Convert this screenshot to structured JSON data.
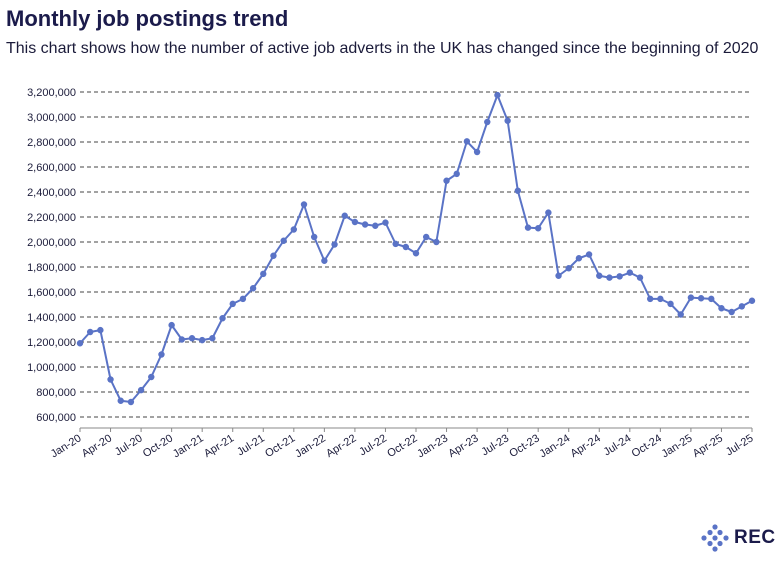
{
  "header": {
    "title": "Monthly job postings trend",
    "subtitle": "This chart shows how the number of active job adverts in the UK has changed since the beginning of 2020"
  },
  "logo": {
    "text": "REC",
    "icon": "diamond-dots-icon"
  },
  "colors": {
    "series": "#5a73c6",
    "grid": "#444444",
    "text": "#1b1b3a"
  },
  "chart_data": {
    "type": "line",
    "title": "Monthly job postings trend",
    "subtitle": "This chart shows how the number of active job adverts in the UK has changed since the beginning of 2020",
    "xlabel": "",
    "ylabel": "",
    "ylim": [
      600000,
      3200000
    ],
    "yticks": [
      600000,
      800000,
      1000000,
      1200000,
      1400000,
      1600000,
      1800000,
      2000000,
      2200000,
      2400000,
      2600000,
      2800000,
      3000000,
      3200000
    ],
    "ytick_labels": [
      "600,000",
      "800,000",
      "1,000,000",
      "1,200,000",
      "1,400,000",
      "1,600,000",
      "1,800,000",
      "2,000,000",
      "2,200,000",
      "2,400,000",
      "2,600,000",
      "2,800,000",
      "3,000,000",
      "3,200,000"
    ],
    "xtick_labels": [
      "Jan-20",
      "Apr-20",
      "Jul-20",
      "Oct-20",
      "Jan-21",
      "Apr-21",
      "Jul-21",
      "Oct-21",
      "Jan-22",
      "Apr-22",
      "Jul-22",
      "Oct-22",
      "Jan-23",
      "Apr-23",
      "Jul-23",
      "Oct-23",
      "Jan-24",
      "Apr-24",
      "Jul-24",
      "Oct-24",
      "Jan-25",
      "Apr-25",
      "Jul-25"
    ],
    "grid": true,
    "grid_style": "dashed horizontal",
    "series": [
      {
        "color": "#5a73c6",
        "x": [
          "2020-01",
          "2020-02",
          "2020-03",
          "2020-04",
          "2020-05",
          "2020-06",
          "2020-07",
          "2020-08",
          "2020-09",
          "2020-10",
          "2020-11",
          "2020-12",
          "2021-01",
          "2021-02",
          "2021-03",
          "2021-04",
          "2021-05",
          "2021-06",
          "2021-07",
          "2021-08",
          "2021-09",
          "2021-10",
          "2021-11",
          "2021-12",
          "2022-01",
          "2022-02",
          "2022-03",
          "2022-04",
          "2022-05",
          "2022-06",
          "2022-07",
          "2022-08",
          "2022-09",
          "2022-10",
          "2022-11",
          "2022-12",
          "2023-01",
          "2023-02",
          "2023-03",
          "2023-04",
          "2023-05",
          "2023-06",
          "2023-07",
          "2023-08",
          "2023-09",
          "2023-10",
          "2023-11",
          "2023-12",
          "2024-01",
          "2024-02",
          "2024-03",
          "2024-04",
          "2024-05",
          "2024-06",
          "2024-07",
          "2024-08",
          "2024-09",
          "2024-10",
          "2024-11",
          "2024-12",
          "2025-01",
          "2025-02",
          "2025-03",
          "2025-04",
          "2025-05",
          "2025-06",
          "2025-07"
        ],
        "values": [
          1190000,
          1280000,
          1295000,
          900000,
          730000,
          720000,
          815000,
          920000,
          1100000,
          1335000,
          1220000,
          1230000,
          1215000,
          1230000,
          1390000,
          1505000,
          1545000,
          1630000,
          1745000,
          1890000,
          2010000,
          2100000,
          2300000,
          2040000,
          1850000,
          1980000,
          2210000,
          2160000,
          2140000,
          2130000,
          2155000,
          1985000,
          1960000,
          1910000,
          2040000,
          2000000,
          2490000,
          2545000,
          2805000,
          2720000,
          2960000,
          3175000,
          2970000,
          2410000,
          2115000,
          2110000,
          2235000,
          1730000,
          1790000,
          1870000,
          1900000,
          1730000,
          1715000,
          1725000,
          1755000,
          1715000,
          1545000,
          1545000,
          1505000,
          1420000,
          1555000,
          1550000,
          1545000,
          1470000,
          1440000,
          1485000,
          1530000
        ]
      }
    ]
  }
}
